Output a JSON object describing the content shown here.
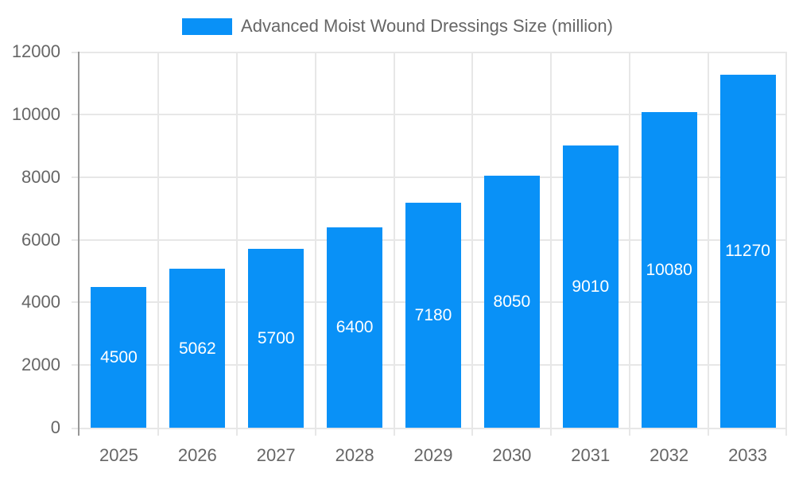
{
  "colors": {
    "bar": "#0991f7",
    "grid": "#e7e7e7",
    "axis": "#979797",
    "text": "#666666",
    "bar_label": "#ffffff",
    "background": "#ffffff"
  },
  "chart_data": {
    "type": "bar",
    "title": "",
    "categories": [
      "2025",
      "2026",
      "2027",
      "2028",
      "2029",
      "2030",
      "2031",
      "2032",
      "2033"
    ],
    "series": [
      {
        "name": "Advanced Moist Wound Dressings Size (million)",
        "values": [
          4500,
          5062,
          5700,
          6400,
          7180,
          8050,
          9010,
          10080,
          11270
        ],
        "color": "#0991f7"
      }
    ],
    "value_labels": [
      4500,
      5062,
      5700,
      6400,
      7180,
      8050,
      9010,
      10080,
      11270
    ],
    "xlabel": "",
    "ylabel": "",
    "ylim": [
      0,
      12000
    ],
    "yticks": [
      0,
      2000,
      4000,
      6000,
      8000,
      10000,
      12000
    ],
    "grid": true,
    "legend_position": "top",
    "value_labels_inside_bars": true
  }
}
